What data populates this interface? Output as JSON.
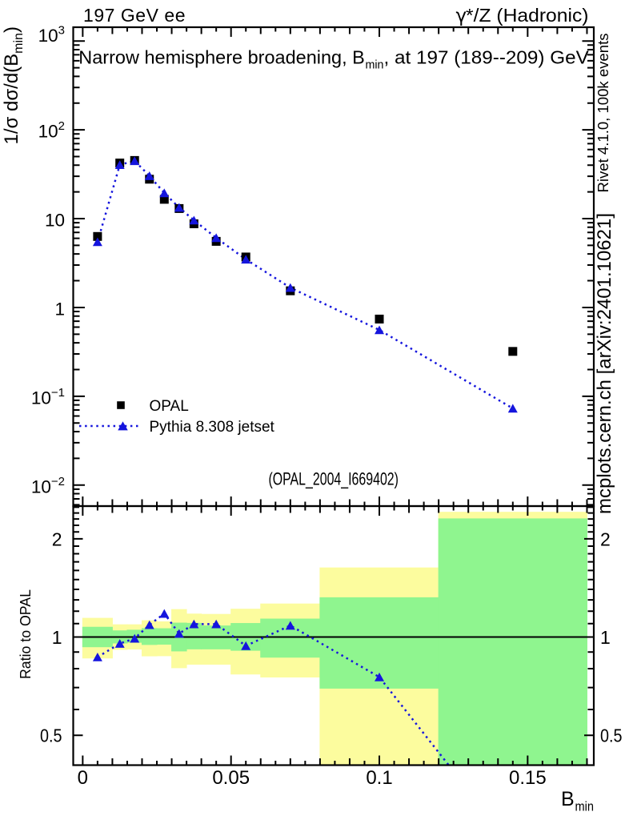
{
  "texts": {
    "header_left": "197 GeV ee",
    "header_right_gamma": "γ",
    "header_right_rest": "*/Z (Hadronic)",
    "title_part1": "Narrow hemisphere broadening, B",
    "title_sub": "min",
    "title_part2": ", at 197 (189--209) GeV",
    "ytitle_part1": "1/σ  dσ/d(B",
    "ytitle_sub": "min",
    "ytitle_part2": ")",
    "ratio_ytitle": "Ratio to OPAL",
    "xtitle_main": "B",
    "xtitle_sub": "min",
    "watermark": "(OPAL_2004_I669402)",
    "side_note_top": "Rivet 4.1.0,  100k events",
    "side_note_bottom": "mcplots.cern.ch [arXiv:2401.10621]"
  },
  "legend": {
    "items": [
      {
        "label": "OPAL",
        "marker": "square",
        "color": "#000000",
        "line_style": "none"
      },
      {
        "label": "Pythia 8.308 jetset",
        "marker": "triangle",
        "color": "#1515dd",
        "line_style": "dotted"
      }
    ]
  },
  "colors": {
    "data_marker": "#000000",
    "mc_blue": "#1515dd",
    "band_outer_yellow": "#fcfc9e",
    "band_inner_green": "#8ff58f",
    "frame": "#000000",
    "side_note_gray": "#7b7b7b",
    "watermark_gray": "#b4b4b4",
    "background": "#ffffff"
  },
  "chart_data": {
    "type": "scatter",
    "title": "Narrow hemisphere broadening, B_min, at 197 (189--209) GeV",
    "xlabel": "B_min",
    "ylabel": "1/σ dσ/d(B_min)",
    "x_log": false,
    "y_log": true,
    "grid": false,
    "legend_position": "inside-middle-left",
    "bin_edges": [
      0.0,
      0.01,
      0.015,
      0.02,
      0.025,
      0.03,
      0.035,
      0.04,
      0.05,
      0.06,
      0.08,
      0.12,
      0.17
    ],
    "x": [
      0.005,
      0.0125,
      0.0175,
      0.0225,
      0.0275,
      0.0325,
      0.0375,
      0.045,
      0.055,
      0.07,
      0.1,
      0.145
    ],
    "xlim": [
      -0.0032,
      0.1723
    ],
    "ylim": [
      0.0058,
      1430
    ],
    "series": [
      {
        "name": "OPAL",
        "marker": "square",
        "color": "#000000",
        "line": "none",
        "values": [
          6.3,
          42.3,
          45.2,
          27.8,
          16.5,
          13.0,
          8.75,
          5.55,
          3.7,
          1.54,
          0.74,
          0.32
        ]
      },
      {
        "name": "Pythia 8.308 jetset",
        "marker": "triangle",
        "color": "#1515dd",
        "line": "dotted",
        "values": [
          5.47,
          40.4,
          44.75,
          30.3,
          19.45,
          13.33,
          9.59,
          6.08,
          3.48,
          1.67,
          0.558,
          0.073
        ]
      }
    ],
    "x_ticks": {
      "major": [
        {
          "v": 0,
          "label": "0"
        },
        {
          "v": 0.05,
          "label": "0.05"
        },
        {
          "v": 0.1,
          "label": "0.1"
        },
        {
          "v": 0.15,
          "label": "0.15"
        }
      ],
      "mid_step": 0.01,
      "minor_step": 0.005
    },
    "y_ticks": {
      "labeled": [
        {
          "v": 1000,
          "base": "10",
          "exp": "3"
        },
        {
          "v": 100,
          "base": "10",
          "exp": "2"
        },
        {
          "v": 10,
          "base": "10",
          "exp": ""
        },
        {
          "v": 1,
          "base": "1",
          "exp": ""
        },
        {
          "v": 0.1,
          "base": "10",
          "exp": "−1"
        },
        {
          "v": 0.01,
          "base": "10",
          "exp": "−2"
        }
      ]
    },
    "ratio_panel": {
      "ylabel": "Ratio to OPAL",
      "reference": "OPAL",
      "ylim": [
        0.405,
        2.52
      ],
      "values": [
        0.868,
        0.955,
        0.99,
        1.09,
        1.18,
        1.025,
        1.096,
        1.096,
        0.94,
        1.085,
        0.754,
        0.228
      ],
      "band_outer": [
        [
          0.86,
          1.145
        ],
        [
          0.914,
          1.094
        ],
        [
          0.916,
          1.094
        ],
        [
          0.873,
          1.126
        ],
        [
          0.874,
          1.117
        ],
        [
          0.803,
          1.218
        ],
        [
          0.823,
          1.18
        ],
        [
          0.823,
          1.177
        ],
        [
          0.768,
          1.221
        ],
        [
          0.752,
          1.267
        ],
        [
          0.35,
          1.634
        ],
        [
          0.3,
          2.42
        ]
      ],
      "band_inner": [
        [
          0.931,
          1.075
        ],
        [
          0.956,
          1.048
        ],
        [
          0.961,
          1.053
        ],
        [
          0.946,
          1.065
        ],
        [
          0.948,
          1.064
        ],
        [
          0.904,
          1.107
        ],
        [
          0.917,
          1.105
        ],
        [
          0.917,
          1.085
        ],
        [
          0.908,
          1.104
        ],
        [
          0.865,
          1.139
        ],
        [
          0.695,
          1.324
        ],
        [
          0.3,
          2.31
        ]
      ],
      "y_ticks": {
        "major": [
          {
            "v": 2,
            "label": "2"
          },
          {
            "v": 1,
            "label": "1"
          },
          {
            "v": 0.5,
            "label": "0.5"
          }
        ],
        "minor_step": 0.1,
        "minor_range": [
          0.5,
          2.5
        ]
      }
    }
  }
}
